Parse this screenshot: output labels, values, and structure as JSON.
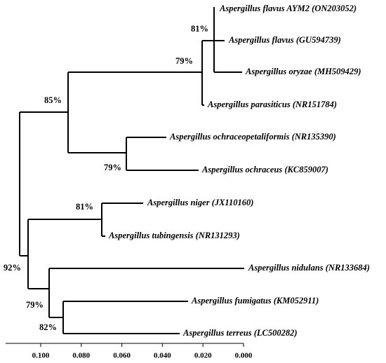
{
  "leaves": [
    "Aspergillus flavus AYM2 (ON203052)",
    "Aspergillus flavus (GU594739)",
    "Aspergillus oryzae (MH509429)",
    "Aspergillus parasiticus (NR151784)",
    "Aspergillus ochraceopetaliformis (NR135390)",
    "Aspergillus ochraceus (KC859007)",
    "Aspergillus niger (JX110160)",
    "Aspergillus tubingensis (NR131293)",
    "Aspergillus nidulans (NR133684)",
    "Aspergillus fumigatus (KM052911)",
    "Aspergillus terreus (LC500282)"
  ],
  "bootstrap": [
    "81%",
    "79%",
    "85%",
    "79%",
    "81%",
    "92%",
    "79%",
    "82%"
  ],
  "scale": {
    "ticks": [
      "0.100",
      "0.080",
      "0.060",
      "0.040",
      "0.020",
      "0.000"
    ]
  }
}
